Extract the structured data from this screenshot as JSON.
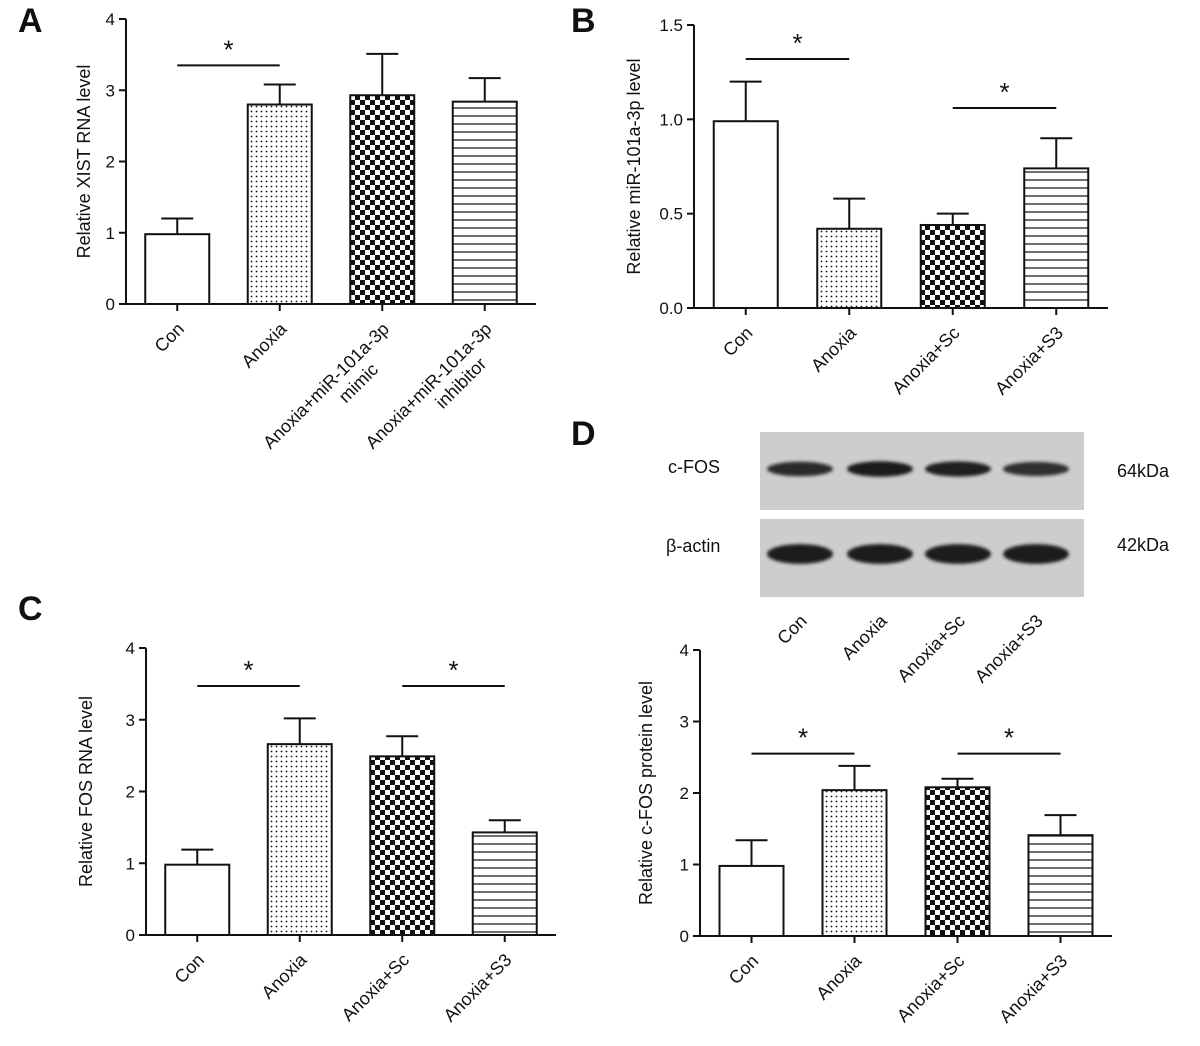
{
  "panels": [
    {
      "letter": "A"
    },
    {
      "letter": "B"
    },
    {
      "letter": "C"
    },
    {
      "letter": "D"
    }
  ],
  "blot": {
    "rows": [
      {
        "label": "c-FOS",
        "kda": "64kDa",
        "intensity": [
          0.82,
          1.0,
          0.95,
          0.75
        ]
      },
      {
        "label": "β-actin",
        "kda": "42kDa",
        "intensity": [
          1.0,
          1.0,
          1.0,
          1.0
        ]
      }
    ],
    "lanes": [
      "Con",
      "Anoxia",
      "Anoxia+Sc",
      "Anoxia+S3"
    ]
  },
  "colors": {
    "ink": "#111111",
    "bar_fill": "#ffffff",
    "blot_bg": "#cdcdcd",
    "band": "#1a1a1a"
  },
  "chart_data": [
    {
      "type": "bar",
      "panel": "A",
      "ylabel": "Relative XIST RNA level",
      "categories": [
        "Con",
        "Anoxia",
        "Anoxia+miR-101a-3p mimic",
        "Anoxia+miR-101a-3p inhibitor"
      ],
      "category_lines": [
        [
          "Con"
        ],
        [
          "Anoxia"
        ],
        [
          "Anoxia+miR-101a-3p",
          "mimic"
        ],
        [
          "Anoxia+miR-101a-3p",
          "inhibitor"
        ]
      ],
      "values": [
        0.98,
        2.8,
        2.93,
        2.84
      ],
      "errors": [
        0.22,
        0.28,
        0.58,
        0.33
      ],
      "patterns": [
        "none",
        "dots",
        "checker",
        "hlines"
      ],
      "ylim": [
        0,
        4
      ],
      "yticks": [
        "0",
        "1",
        "2",
        "3",
        "4"
      ],
      "significance": [
        {
          "from": 0,
          "to": 1,
          "label": "*",
          "y": 3.35
        }
      ]
    },
    {
      "type": "bar",
      "panel": "B",
      "ylabel": "Relative miR-101a-3p level",
      "categories": [
        "Con",
        "Anoxia",
        "Anoxia+Sc",
        "Anoxia+S3"
      ],
      "category_lines": [
        [
          "Con"
        ],
        [
          "Anoxia"
        ],
        [
          "Anoxia+Sc"
        ],
        [
          "Anoxia+S3"
        ]
      ],
      "values": [
        0.99,
        0.42,
        0.44,
        0.74
      ],
      "errors": [
        0.21,
        0.16,
        0.06,
        0.16
      ],
      "patterns": [
        "none",
        "dots",
        "checker",
        "hlines"
      ],
      "ylim": [
        0,
        1.5
      ],
      "yticks": [
        "0.0",
        "0.5",
        "1.0",
        "1.5"
      ],
      "significance": [
        {
          "from": 0,
          "to": 1,
          "label": "*",
          "y": 1.32
        },
        {
          "from": 2,
          "to": 3,
          "label": "*",
          "y": 1.06
        }
      ]
    },
    {
      "type": "bar",
      "panel": "C",
      "ylabel": "Relative FOS RNA level",
      "categories": [
        "Con",
        "Anoxia",
        "Anoxia+Sc",
        "Anoxia+S3"
      ],
      "category_lines": [
        [
          "Con"
        ],
        [
          "Anoxia"
        ],
        [
          "Anoxia+Sc"
        ],
        [
          "Anoxia+S3"
        ]
      ],
      "values": [
        0.98,
        2.66,
        2.49,
        1.43
      ],
      "errors": [
        0.21,
        0.36,
        0.28,
        0.17
      ],
      "patterns": [
        "none",
        "dots",
        "checker",
        "hlines"
      ],
      "ylim": [
        0,
        4
      ],
      "yticks": [
        "0",
        "1",
        "2",
        "3",
        "4"
      ],
      "significance": [
        {
          "from": 0,
          "to": 1,
          "label": "*",
          "y": 3.47
        },
        {
          "from": 2,
          "to": 3,
          "label": "*",
          "y": 3.47
        }
      ]
    },
    {
      "type": "bar",
      "panel": "D",
      "ylabel": "Relative c-FOS protein level",
      "categories": [
        "Con",
        "Anoxia",
        "Anoxia+Sc",
        "Anoxia+S3"
      ],
      "category_lines": [
        [
          "Con"
        ],
        [
          "Anoxia"
        ],
        [
          "Anoxia+Sc"
        ],
        [
          "Anoxia+S3"
        ]
      ],
      "values": [
        0.98,
        2.04,
        2.08,
        1.41
      ],
      "errors": [
        0.36,
        0.34,
        0.12,
        0.28
      ],
      "patterns": [
        "none",
        "dots",
        "checker",
        "hlines"
      ],
      "ylim": [
        0,
        4
      ],
      "yticks": [
        "0",
        "1",
        "2",
        "3",
        "4"
      ],
      "significance": [
        {
          "from": 0,
          "to": 1,
          "label": "*",
          "y": 2.55
        },
        {
          "from": 2,
          "to": 3,
          "label": "*",
          "y": 2.55
        }
      ]
    }
  ]
}
